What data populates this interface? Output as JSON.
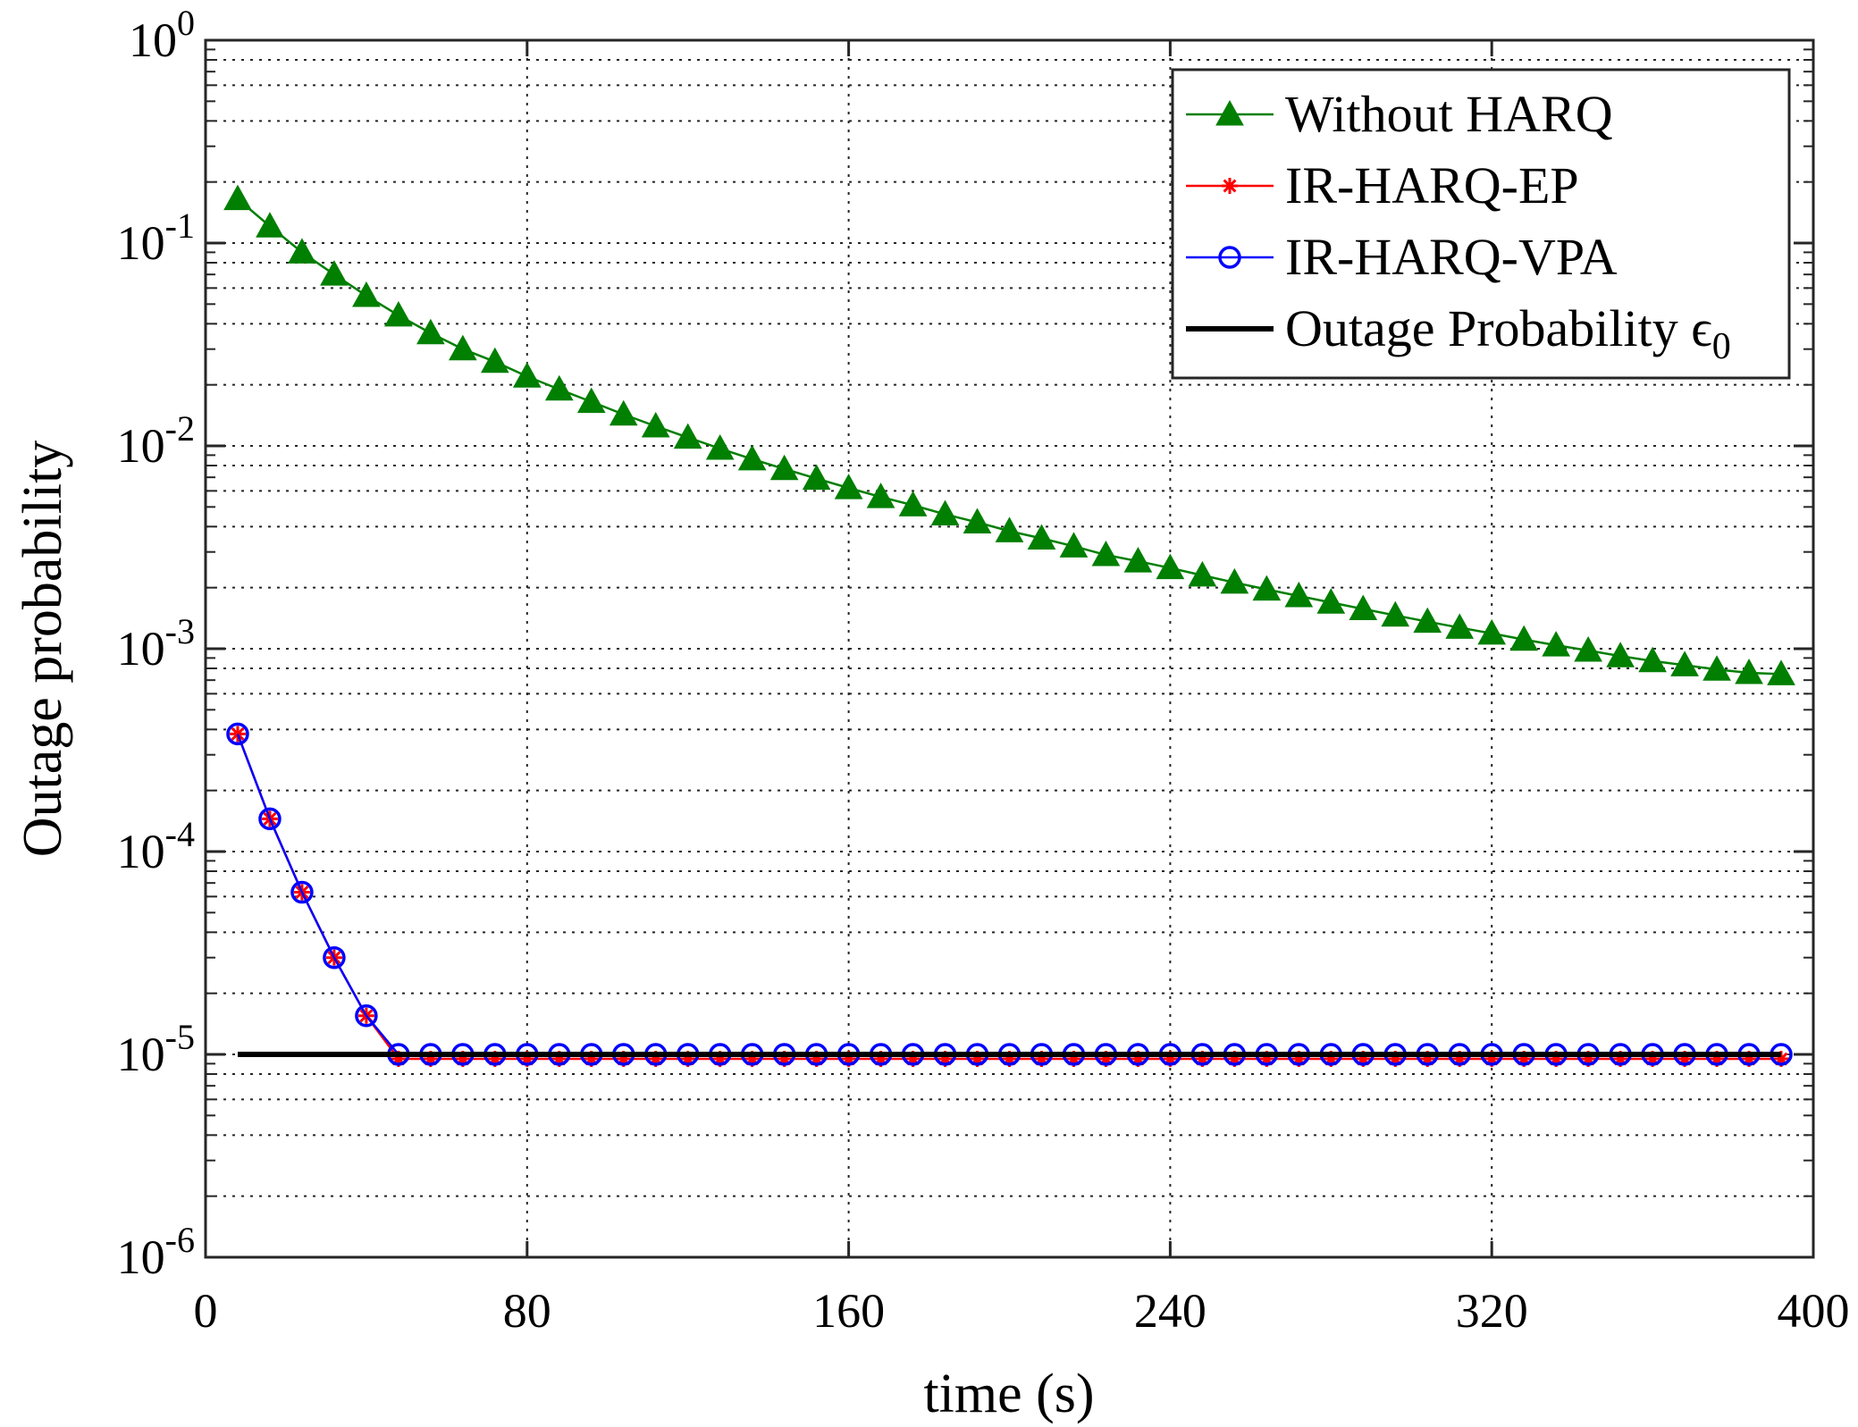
{
  "chart_data": {
    "type": "line",
    "title": "",
    "xlabel": "time (s)",
    "ylabel": "Outage probability",
    "xlim": [
      0,
      400
    ],
    "ylim": [
      1e-06,
      1
    ],
    "yscale": "log",
    "grid": true,
    "legend_position": "top-right",
    "x_ticks": [
      {
        "value": 0,
        "label": "0"
      },
      {
        "value": 80,
        "label": "80"
      },
      {
        "value": 160,
        "label": "160"
      },
      {
        "value": 240,
        "label": "240"
      },
      {
        "value": 320,
        "label": "320"
      },
      {
        "value": 400,
        "label": "400"
      }
    ],
    "y_ticks": [
      {
        "exp": 0,
        "base": "10",
        "power": "0"
      },
      {
        "exp": -1,
        "base": "10",
        "power": "-1"
      },
      {
        "exp": -2,
        "base": "10",
        "power": "-2"
      },
      {
        "exp": -3,
        "base": "10",
        "power": "-3"
      },
      {
        "exp": -4,
        "base": "10",
        "power": "-4"
      },
      {
        "exp": -5,
        "base": "10",
        "power": "-5"
      },
      {
        "exp": -6,
        "base": "10",
        "power": "-6"
      }
    ],
    "x": [
      8,
      16,
      24,
      32,
      40,
      48,
      56,
      64,
      72,
      80,
      88,
      96,
      104,
      112,
      120,
      128,
      136,
      144,
      152,
      160,
      168,
      176,
      184,
      192,
      200,
      208,
      216,
      224,
      232,
      240,
      248,
      256,
      264,
      272,
      280,
      288,
      296,
      304,
      312,
      320,
      328,
      336,
      344,
      352,
      360,
      368,
      376,
      384,
      392
    ],
    "series": [
      {
        "name": "Without HARQ",
        "color": "#007f00",
        "marker": "triangle",
        "values": [
          0.165,
          0.121,
          0.09,
          0.07,
          0.055,
          0.044,
          0.036,
          0.03,
          0.026,
          0.022,
          0.019,
          0.0165,
          0.0143,
          0.0125,
          0.011,
          0.0097,
          0.0086,
          0.0077,
          0.0069,
          0.0062,
          0.0056,
          0.0051,
          0.0046,
          0.0042,
          0.0038,
          0.0035,
          0.0032,
          0.0029,
          0.0027,
          0.0025,
          0.0023,
          0.00212,
          0.00196,
          0.00182,
          0.00169,
          0.00157,
          0.00146,
          0.00136,
          0.00127,
          0.00119,
          0.00111,
          0.00104,
          0.00098,
          0.00092,
          0.00087,
          0.00083,
          0.00079,
          0.00076,
          0.00075
        ]
      },
      {
        "name": "IR-HARQ-EP",
        "color": "#ff0000",
        "marker": "asterisk",
        "values": [
          0.00038,
          0.000145,
          6.3e-05,
          3e-05,
          1.55e-05,
          9.5e-06,
          9.5e-06,
          9.5e-06,
          9.5e-06,
          9.5e-06,
          9.5e-06,
          9.5e-06,
          9.5e-06,
          9.5e-06,
          9.5e-06,
          9.5e-06,
          9.5e-06,
          9.5e-06,
          9.5e-06,
          9.5e-06,
          9.5e-06,
          9.5e-06,
          9.5e-06,
          9.5e-06,
          9.5e-06,
          9.5e-06,
          9.5e-06,
          9.5e-06,
          9.5e-06,
          9.5e-06,
          9.5e-06,
          9.5e-06,
          9.5e-06,
          9.5e-06,
          9.5e-06,
          9.5e-06,
          9.5e-06,
          9.5e-06,
          9.5e-06,
          9.5e-06,
          9.5e-06,
          9.5e-06,
          9.5e-06,
          9.5e-06,
          9.5e-06,
          9.5e-06,
          9.5e-06,
          9.5e-06,
          9.5e-06
        ]
      },
      {
        "name": "IR-HARQ-VPA",
        "color": "#0000ff",
        "marker": "circle",
        "values": [
          0.00038,
          0.000145,
          6.3e-05,
          3e-05,
          1.55e-05,
          1e-05,
          1e-05,
          1e-05,
          1e-05,
          1e-05,
          1e-05,
          1e-05,
          1e-05,
          1e-05,
          1e-05,
          1e-05,
          1e-05,
          1e-05,
          1e-05,
          1e-05,
          1e-05,
          1e-05,
          1e-05,
          1e-05,
          1e-05,
          1e-05,
          1e-05,
          1e-05,
          1e-05,
          1e-05,
          1e-05,
          1e-05,
          1e-05,
          1e-05,
          1e-05,
          1e-05,
          1e-05,
          1e-05,
          1e-05,
          1e-05,
          1e-05,
          1e-05,
          1e-05,
          1e-05,
          1e-05,
          1e-05,
          1e-05,
          1e-05,
          1e-05
        ]
      },
      {
        "name": "Outage Probability ",
        "name_symbol": "ϵ",
        "name_subscript": "0",
        "color": "#000000",
        "marker": "none",
        "x": [
          8,
          392
        ],
        "values": [
          1e-05,
          1e-05
        ]
      }
    ]
  }
}
